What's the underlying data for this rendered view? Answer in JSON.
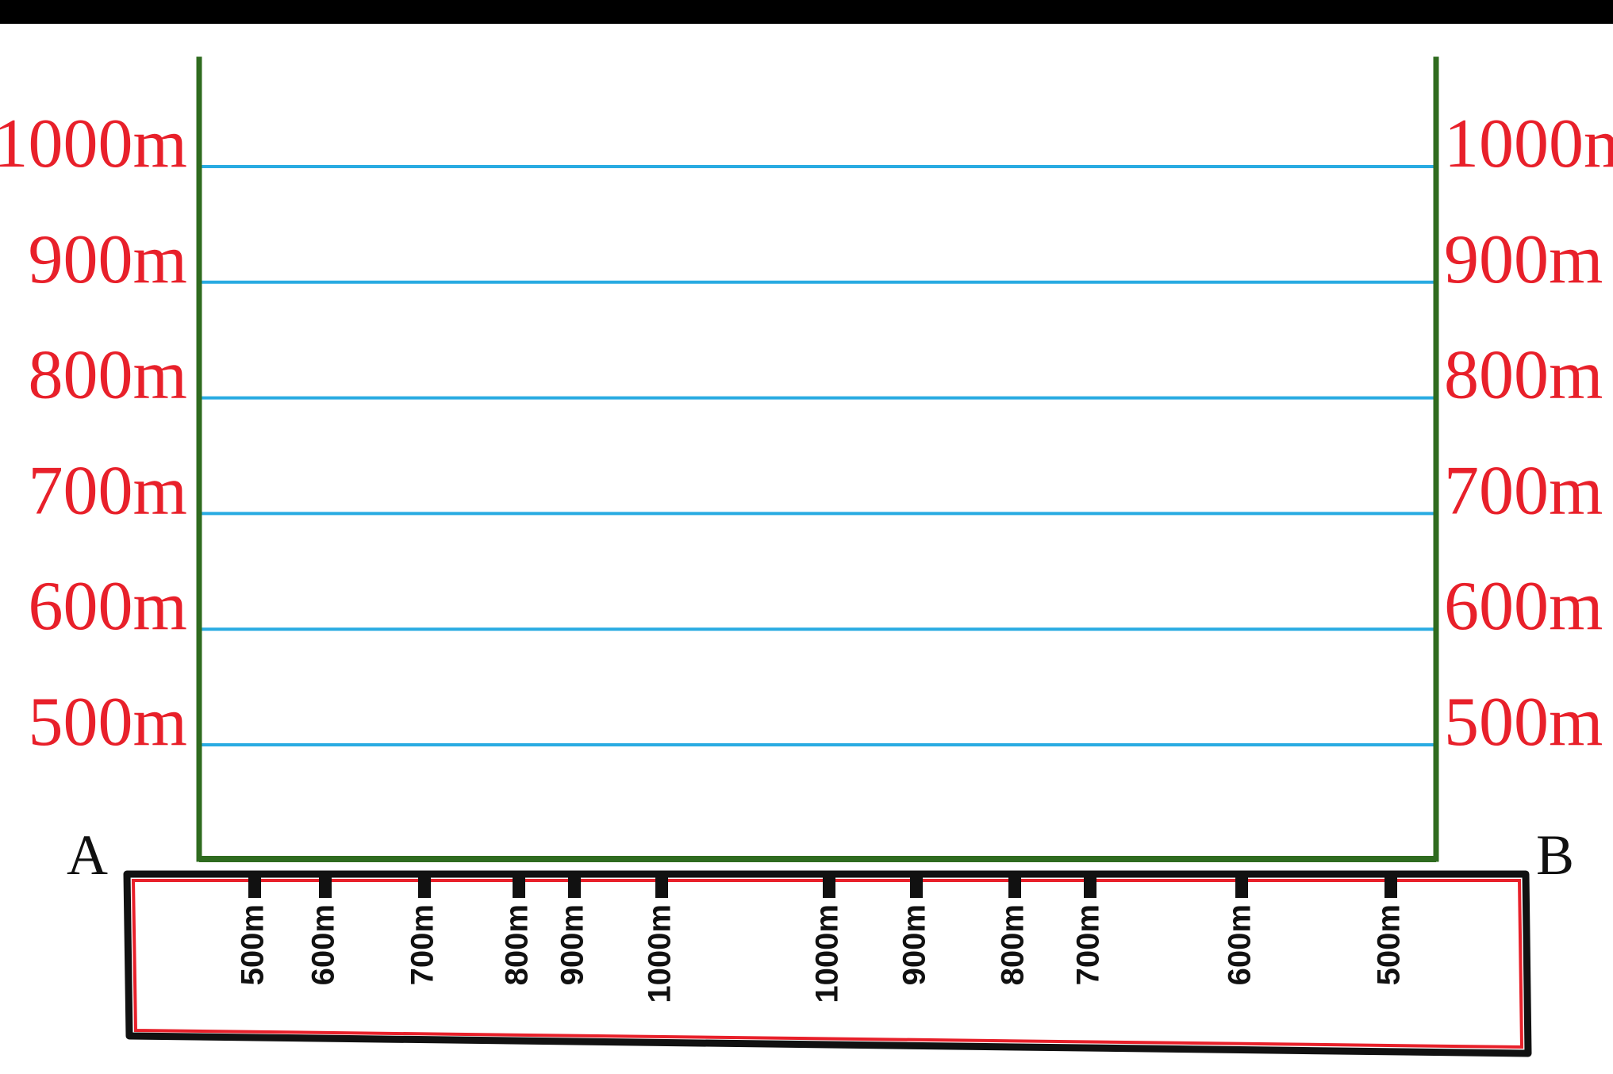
{
  "colors": {
    "background": "#000000",
    "canvas": "#ffffff",
    "frame": "#2f6b1f",
    "contour_line": "#29abe2",
    "elevation_text": "#e8202a",
    "strip_border": "#e8202a",
    "strip_outline": "#111111",
    "text": "#111111"
  },
  "profile": {
    "left_end_label": "A",
    "right_end_label": "B",
    "elevation_levels": [
      {
        "value": 1000,
        "label": "1000m"
      },
      {
        "value": 900,
        "label": "900m"
      },
      {
        "value": 800,
        "label": "800m"
      },
      {
        "value": 700,
        "label": "700m"
      },
      {
        "value": 600,
        "label": "600m"
      },
      {
        "value": 500,
        "label": "500m"
      }
    ]
  },
  "contour_strip": {
    "crossings": [
      {
        "label": "500m"
      },
      {
        "label": "600m"
      },
      {
        "label": "700m"
      },
      {
        "label": "800m"
      },
      {
        "label": "900m"
      },
      {
        "label": "1000m"
      },
      {
        "label": "1000m"
      },
      {
        "label": "900m"
      },
      {
        "label": "800m"
      },
      {
        "label": "700m"
      },
      {
        "label": "600m"
      },
      {
        "label": "500m"
      }
    ]
  }
}
